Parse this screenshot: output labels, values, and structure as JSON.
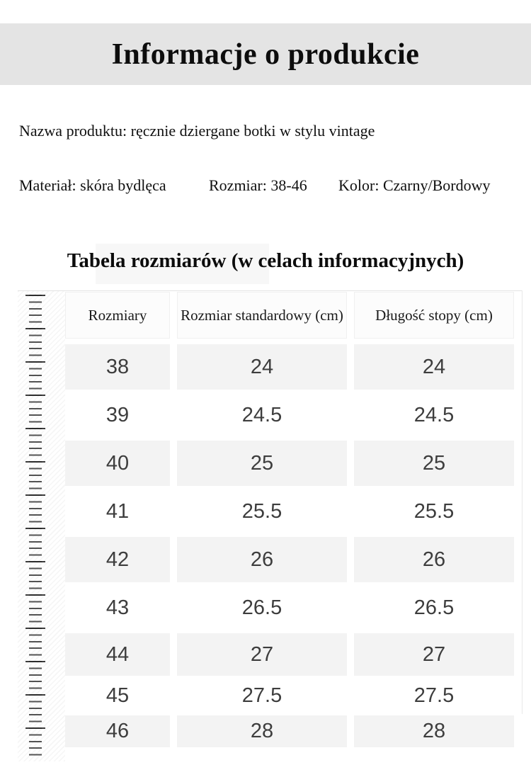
{
  "header": {
    "title": "Informacje o produkcie"
  },
  "product": {
    "name_line": "Nazwa produktu: ręcznie dziergane botki w stylu vintage",
    "material": "Materiał: skóra bydlęca",
    "size": "Rozmiar: 38-46",
    "color": "Kolor: Czarny/Bordowy"
  },
  "size_table": {
    "title": "Tabela rozmiarów (w celach informacyjnych)",
    "columns": [
      "Rozmiary",
      "Rozmiar standardowy (cm)",
      "Długość stopy (cm)"
    ],
    "rows": [
      [
        "38",
        "24",
        "24"
      ],
      [
        "39",
        "24.5",
        "24.5"
      ],
      [
        "40",
        "25",
        "25"
      ],
      [
        "41",
        "25.5",
        "25.5"
      ],
      [
        "42",
        "26",
        "26"
      ],
      [
        "43",
        "26.5",
        "26.5"
      ],
      [
        "44",
        "27",
        "27"
      ],
      [
        "45",
        "27.5",
        "27.5"
      ],
      [
        "46",
        "28",
        "28"
      ]
    ]
  },
  "colors": {
    "top_band_gray": "#e4e4e4",
    "row_stripe_gray": "#f3f3f3",
    "header_cell_bg": "#fcfcfc",
    "digit_text": "#3d3d3d",
    "ruler_tick": "#2d2d2d"
  }
}
